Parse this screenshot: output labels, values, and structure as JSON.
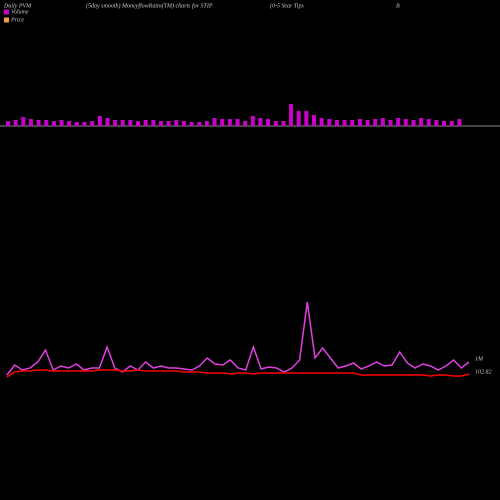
{
  "chart_data": {
    "type": "volume-price",
    "title": "(5day smooth) MoneyflowRatio(TM) charts for STIP",
    "left_title": "Daily PVM",
    "right_title": "(0-5 Year Tips",
    "corner_label": "B",
    "series": [
      {
        "name": "Volume",
        "color": "#cc00cc",
        "values": [
          5,
          6,
          9,
          7,
          6,
          6,
          5,
          6,
          5,
          4,
          4,
          5,
          10,
          8,
          6,
          6,
          6,
          5,
          6,
          6,
          5,
          5,
          6,
          5,
          4,
          4,
          5,
          8,
          7,
          7,
          7,
          5,
          10,
          8,
          7,
          5,
          5,
          22,
          15,
          15,
          11,
          8,
          7,
          6,
          6,
          6,
          7,
          6,
          7,
          8,
          6,
          8,
          7,
          6,
          8,
          7,
          6,
          5,
          5,
          7
        ]
      },
      {
        "name": "Price",
        "color": "#f0a040"
      }
    ],
    "vol_ylim": [
      0,
      30
    ],
    "lines": [
      {
        "color": "#e040e0",
        "values": [
          5,
          15,
          10,
          12,
          18,
          30,
          10,
          14,
          12,
          16,
          10,
          12,
          12,
          33,
          12,
          8,
          14,
          10,
          18,
          12,
          14,
          12,
          12,
          11,
          10,
          14,
          22,
          16,
          15,
          20,
          12,
          10,
          33,
          11,
          13,
          12,
          8,
          12,
          20,
          78,
          22,
          32,
          22,
          12,
          14,
          17,
          11,
          14,
          18,
          14,
          15,
          28,
          17,
          12,
          16,
          14,
          10,
          14,
          20,
          12,
          18
        ]
      },
      {
        "color": "#ff0000",
        "values": [
          3,
          8,
          9,
          9,
          10,
          10,
          9,
          9,
          9,
          9,
          9,
          9,
          10,
          10,
          10,
          9,
          9,
          10,
          9,
          9,
          9,
          9,
          9,
          8,
          8,
          8,
          7,
          7,
          7,
          6,
          7,
          7,
          6,
          7,
          7,
          7,
          7,
          7,
          7,
          7,
          7,
          7,
          7,
          7,
          7,
          7,
          5,
          5,
          5,
          5,
          5,
          5,
          5,
          5,
          5,
          4,
          5,
          5,
          4,
          4,
          6
        ]
      }
    ],
    "line_ylim": [
      0,
      100
    ],
    "annotations": [
      "1M",
      "102.82"
    ]
  }
}
